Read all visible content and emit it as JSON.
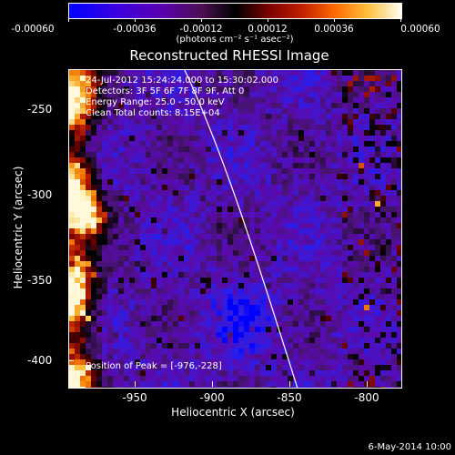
{
  "colorbar": {
    "ticks": [
      "-0.00060",
      "-0.00036",
      "-0.00012",
      "0.00012",
      "0.00036",
      "0.00060"
    ],
    "unit": "(photons cm⁻² s⁻¹ asec⁻²)"
  },
  "title": "Reconstructed RHESSI Image",
  "info": {
    "time": "24-Jul-2012 15:24:24.000 to 15:30:02.000",
    "detectors": "Detectors: 3F 5F 6F 7F 8F 9F, Att 0",
    "energy": "Energy Range: 25.0 - 50.0 keV",
    "clean": "Clean     Total counts: 8.15E+04",
    "peak": "Position of Peak = [-976,-228]"
  },
  "axes": {
    "xlabel": "Heliocentric X (arcsec)",
    "ylabel": "Heliocentric Y (arcsec)",
    "xticks": [
      "-950",
      "-900",
      "-850",
      "-800"
    ],
    "yticks": [
      "-250",
      "-300",
      "-350",
      "-400"
    ]
  },
  "footer": {
    "date": "6-May-2014 10:00"
  }
}
